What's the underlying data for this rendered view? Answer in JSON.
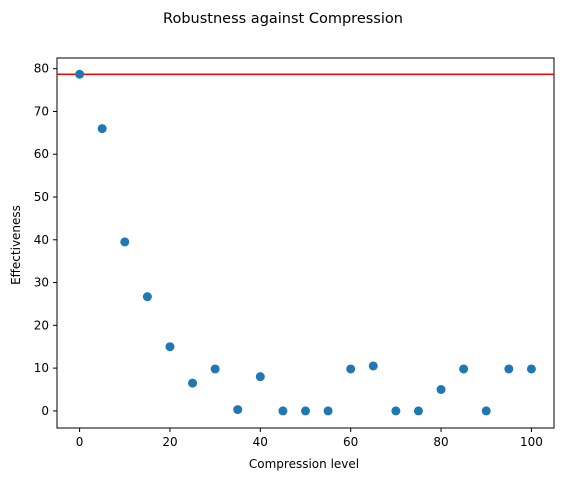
{
  "chart_data": {
    "type": "scatter",
    "title": "Robustness against Compression",
    "xlabel": "Compression level",
    "ylabel": "Effectiveness",
    "xlim": [
      -5,
      105
    ],
    "ylim": [
      -4,
      82.5
    ],
    "xticks": [
      0,
      20,
      40,
      60,
      80,
      100
    ],
    "yticks": [
      0,
      10,
      20,
      30,
      40,
      50,
      60,
      70,
      80
    ],
    "grid": false,
    "x": [
      0,
      5,
      10,
      15,
      20,
      25,
      30,
      35,
      40,
      45,
      50,
      55,
      60,
      65,
      70,
      75,
      80,
      85,
      90,
      95,
      100
    ],
    "y": [
      78.7,
      66.0,
      39.5,
      26.7,
      15.0,
      6.5,
      9.8,
      0.3,
      8.0,
      0.0,
      0.0,
      0.0,
      9.8,
      10.5,
      0.0,
      0.0,
      5.0,
      9.8,
      0.0,
      9.8,
      9.8
    ],
    "hline": {
      "y": 78.7,
      "color": "#ff0000"
    },
    "marker_color": "#1f77b4"
  }
}
